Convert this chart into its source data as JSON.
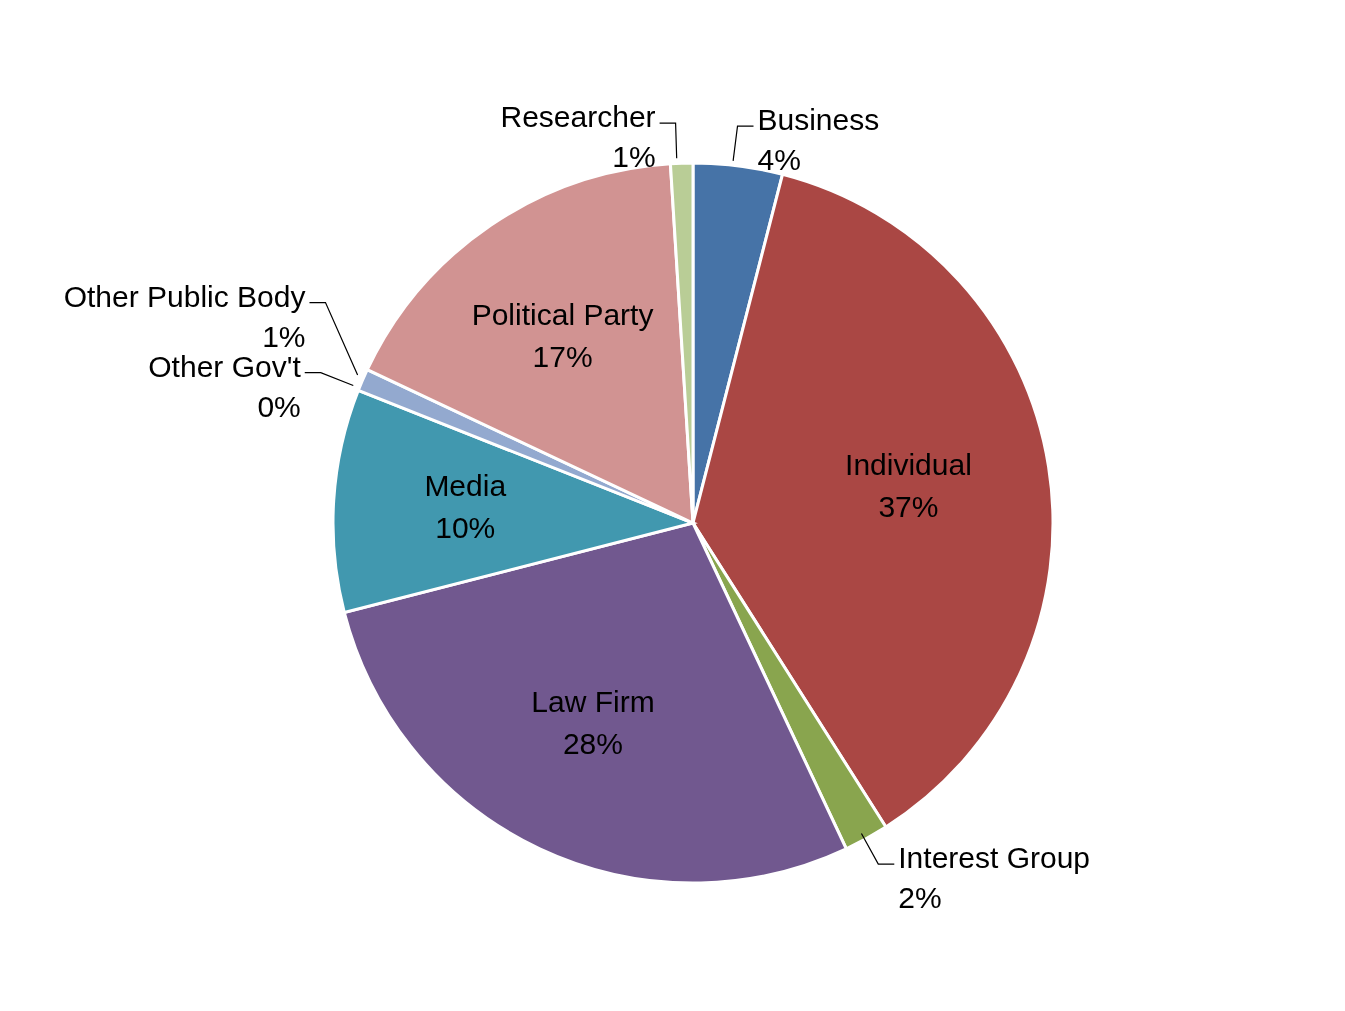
{
  "chart_data": {
    "type": "pie",
    "categories": [
      "Business",
      "Individual",
      "Interest Group",
      "Law Firm",
      "Media",
      "Other Gov't",
      "Other Public Body",
      "Political Party",
      "Researcher"
    ],
    "values": [
      4,
      37,
      2,
      28,
      10,
      0,
      1,
      17,
      1
    ],
    "value_labels": [
      "4%",
      "37%",
      "2%",
      "28%",
      "10%",
      "0%",
      "1%",
      "17%",
      "1%"
    ],
    "colors": [
      "#4673a7",
      "#aa4744",
      "#89a54e",
      "#71588f",
      "#4198af",
      "#db843d",
      "#93a9cf",
      "#d19392",
      "#b9cd96"
    ]
  }
}
